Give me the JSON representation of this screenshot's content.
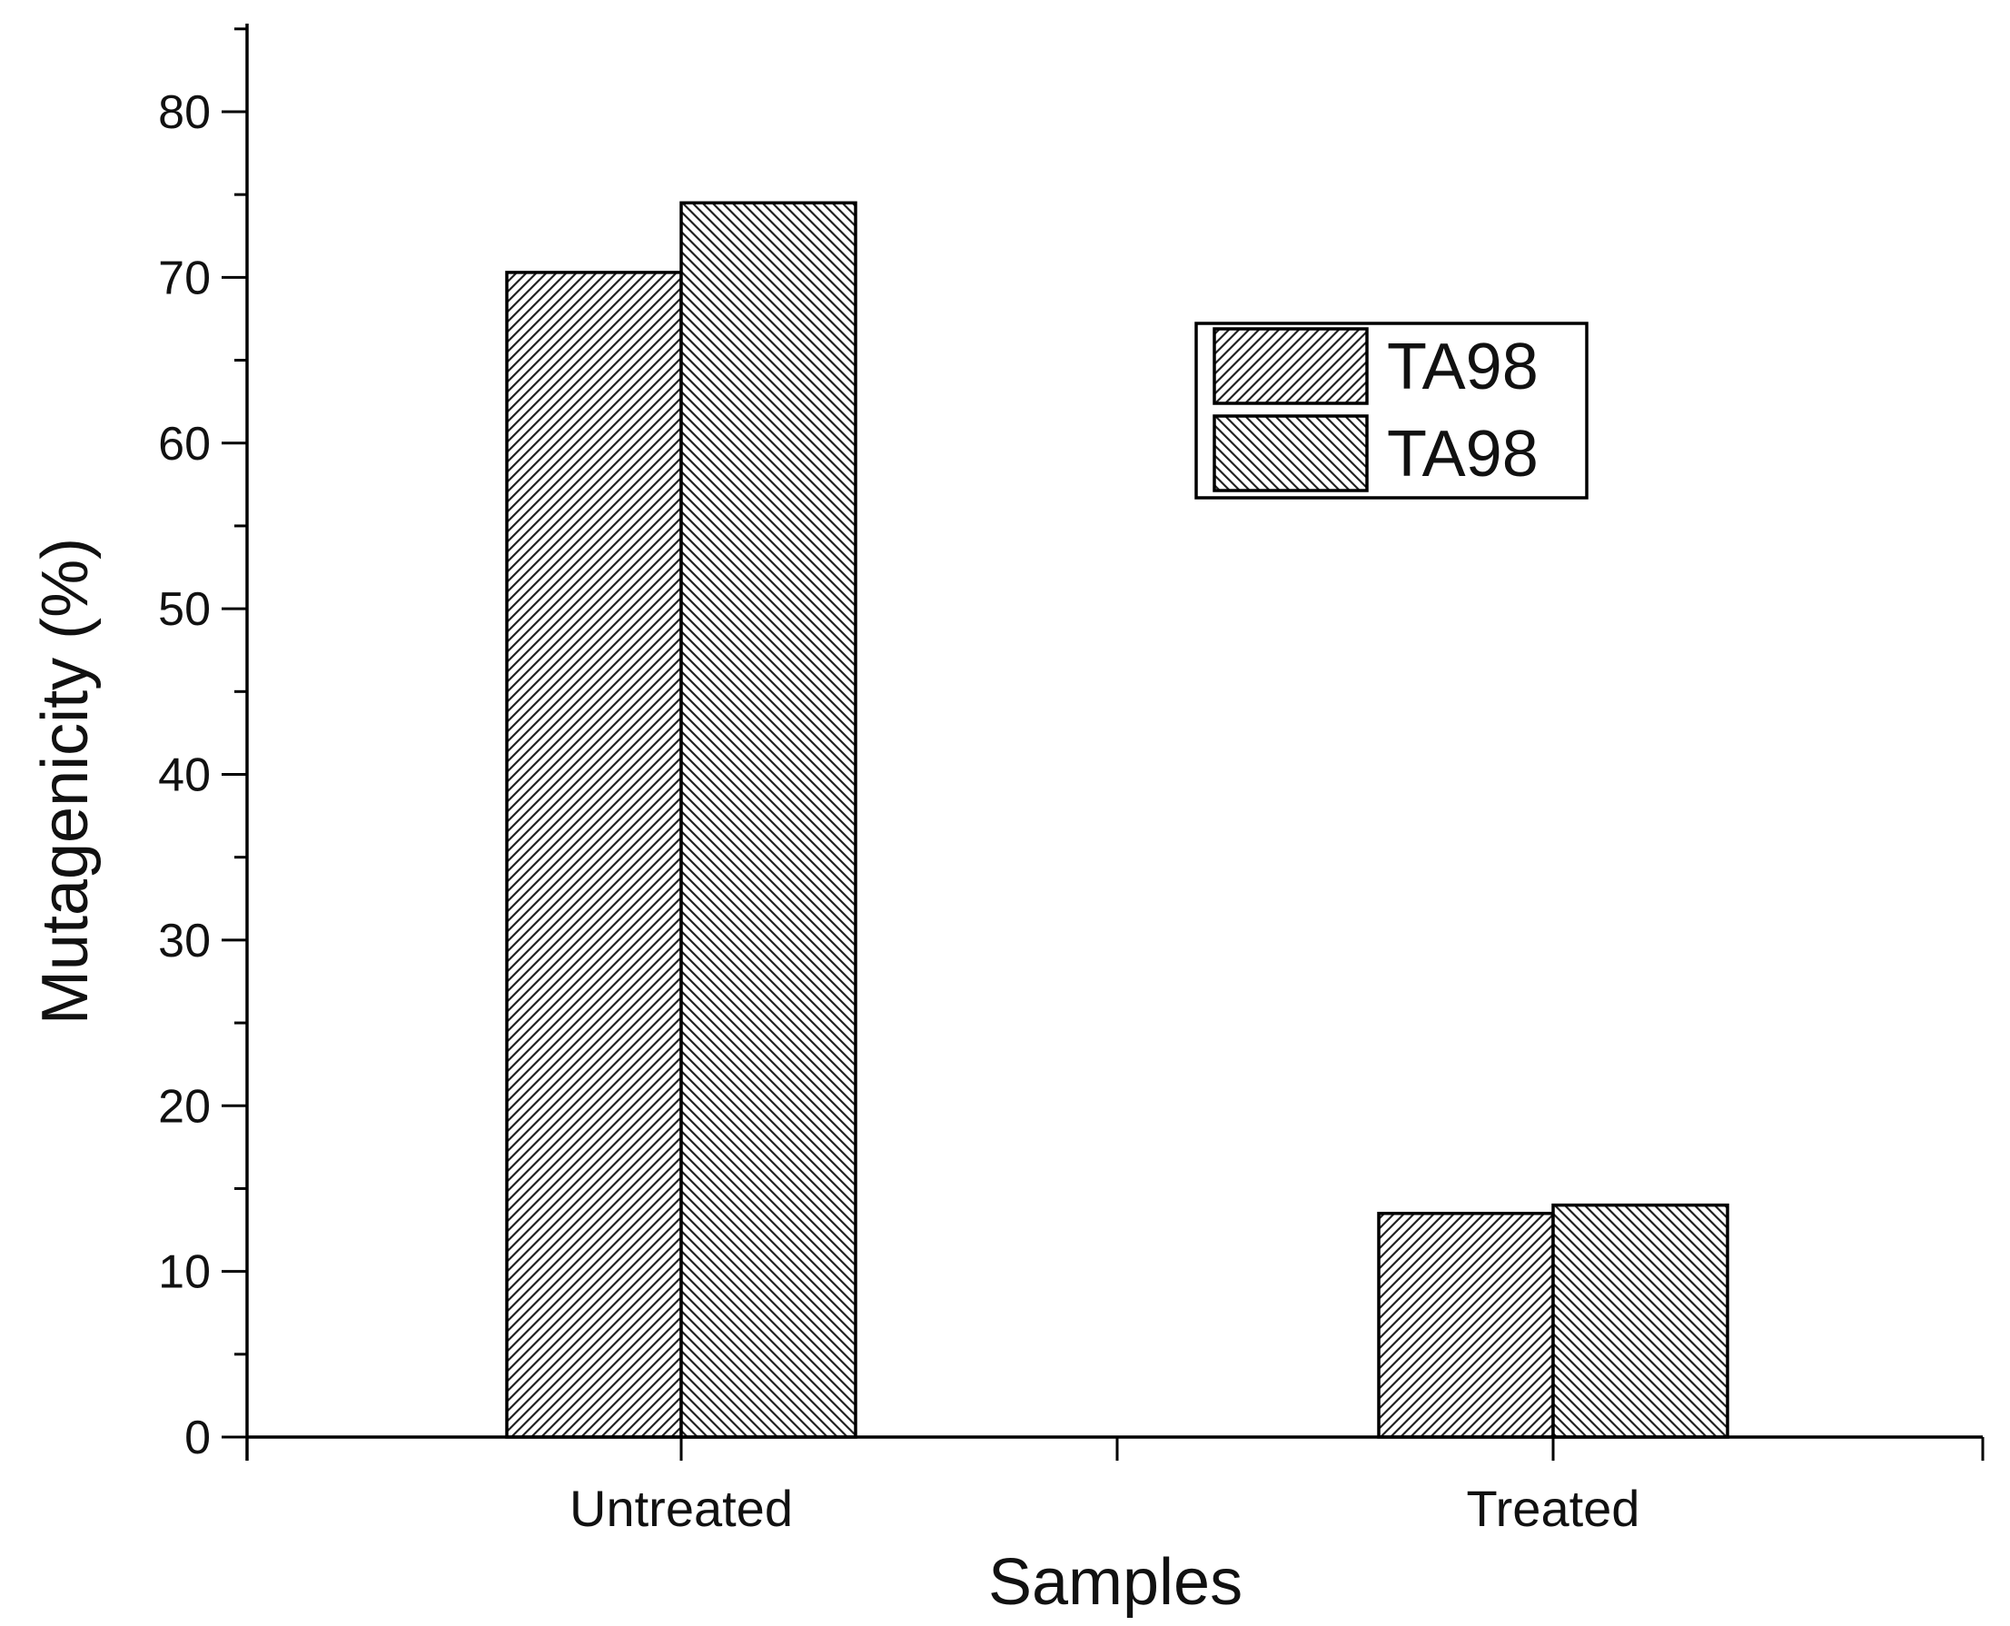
{
  "chart_data": {
    "type": "bar",
    "title": "",
    "xlabel": "Samples",
    "ylabel": "Mutagenicity (%)",
    "categories": [
      "Untreated",
      "Treated"
    ],
    "series": [
      {
        "name": "TA98",
        "values": [
          70.3,
          13.5
        ],
        "pattern": "hatch-forward"
      },
      {
        "name": "TA98",
        "values": [
          74.5,
          14.0
        ],
        "pattern": "hatch-backward"
      }
    ],
    "ylim": [
      0,
      85
    ],
    "yticks": [
      0,
      10,
      20,
      30,
      40,
      50,
      60,
      70,
      80
    ],
    "y_minor_step": 5,
    "grid": false,
    "legend": {
      "position": "top-right-inside",
      "entries": [
        "TA98",
        "TA98"
      ]
    },
    "colors": {
      "bar_fill": "#ffffff",
      "stroke": "#000000",
      "hatch": "#222222"
    }
  }
}
